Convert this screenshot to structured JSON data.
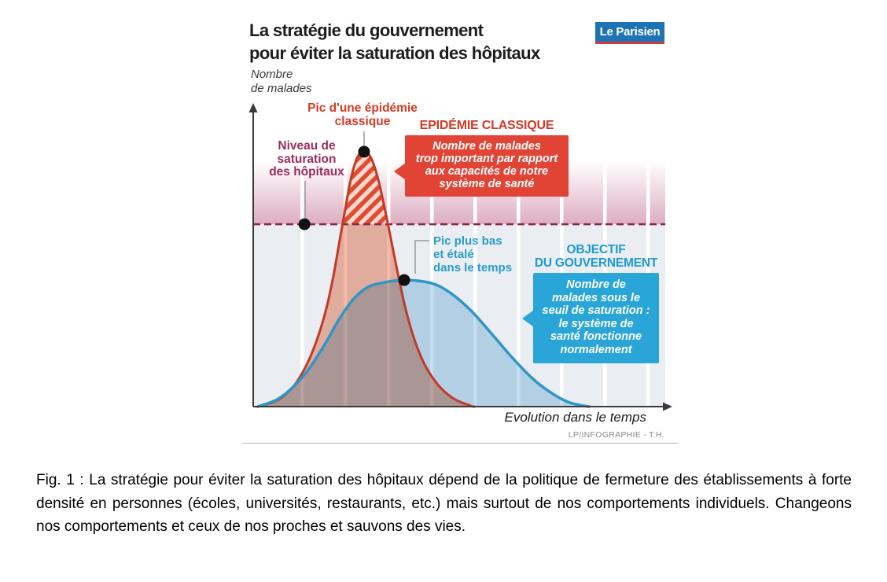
{
  "infographic": {
    "title": {
      "line1": "La stratégie du gouvernement",
      "line2": "pour éviter la saturation des hôpitaux"
    },
    "logo": {
      "text": "Le Parisien",
      "bg_color": "#1e73b4",
      "underline_color": "#cf3a3c"
    },
    "y_axis_label": {
      "line1": "Nombre",
      "line2": "de malades"
    },
    "x_axis_label": "Evolution dans le temps",
    "credit": "LP/INFOGRAPHIE - T.H.",
    "labels": {
      "classic_peak": {
        "line1": "Pic d'une épidémie",
        "line2": "classique",
        "color": "#d53b28"
      },
      "saturation": {
        "line1": "Niveau de",
        "line2": "saturation",
        "line3": "des hôpitaux",
        "color": "#9b2d5e"
      },
      "flat_peak": {
        "line1": "Pic plus bas",
        "line2": "et étalé",
        "line3": "dans le temps",
        "color": "#2a9ccc"
      }
    },
    "red_callout": {
      "heading": "EPIDÉMIE CLASSIQUE",
      "lines": [
        "Nombre de malades",
        "trop important par rapport",
        "aux capacités de notre",
        "système de santé"
      ],
      "bg_color": "#e14334",
      "heading_color": "#d23a27"
    },
    "blue_callout": {
      "heading_line1": "OBJECTIF",
      "heading_line2": "DU GOUVERNEMENT",
      "lines": [
        "Nombre de",
        "malades sous le",
        "seuil de saturation :",
        "le système de",
        "santé fonctionne",
        "normalement"
      ],
      "bg_color": "#2aa5d8",
      "heading_color": "#1b9ad3"
    }
  },
  "chart_data": {
    "type": "area",
    "title": "La stratégie du gouvernement pour éviter la saturation des hôpitaux",
    "xlabel": "Evolution dans le temps",
    "ylabel": "Nombre de malades",
    "x_range": [
      0,
      100
    ],
    "y_range": [
      0,
      100
    ],
    "axes_numeric_labels": false,
    "grid": "vertical pale bands, no tick labels",
    "saturation_line": {
      "label": "Niveau de saturation des hôpitaux",
      "y": 60.4,
      "style": "dashed",
      "color": "#8c2746",
      "marker_x": 12.4
    },
    "series": [
      {
        "name": "Épidémie classique",
        "annotation": "Pic d'une épidémie classique — Nombre de malades trop important par rapport aux capacités de notre système de santé",
        "stroke": "#c23a28",
        "fill": "#f3b9a6",
        "hatched_above_saturation": true,
        "marker": {
          "x": 26.8,
          "y": 84.4
        },
        "points": [
          [
            2.3,
            0.3
          ],
          [
            6.5,
            2.6
          ],
          [
            9.9,
            7.0
          ],
          [
            12.9,
            13.8
          ],
          [
            15.4,
            22.1
          ],
          [
            17.5,
            31.5
          ],
          [
            19.2,
            41.9
          ],
          [
            20.7,
            53.4
          ],
          [
            22.1,
            64.3
          ],
          [
            23.6,
            75.3
          ],
          [
            25.1,
            82.3
          ],
          [
            26.8,
            84.4
          ],
          [
            28.5,
            82.3
          ],
          [
            30.2,
            75.3
          ],
          [
            32.0,
            64.3
          ],
          [
            33.6,
            53.4
          ],
          [
            35.3,
            41.9
          ],
          [
            37.0,
            31.5
          ],
          [
            39.0,
            22.1
          ],
          [
            41.5,
            13.8
          ],
          [
            44.8,
            7.0
          ],
          [
            48.5,
            2.6
          ],
          [
            52.5,
            0.3
          ],
          [
            53.5,
            0
          ]
        ]
      },
      {
        "name": "Objectif du gouvernement",
        "annotation": "Pic plus bas et étalé dans le temps — Nombre de malades sous le seuil de saturation : le système de santé fonctionne normalement",
        "stroke": "#3096c6",
        "fill": "#c3def0",
        "hatched_above_saturation": false,
        "marker": {
          "x": 36.5,
          "y": 41.9
        },
        "points": [
          [
            1.1,
            0
          ],
          [
            5.7,
            2.3
          ],
          [
            9.5,
            6.3
          ],
          [
            13.3,
            12.2
          ],
          [
            17.1,
            20.1
          ],
          [
            20.9,
            29.2
          ],
          [
            24.3,
            35.7
          ],
          [
            27.8,
            39.6
          ],
          [
            31.6,
            41.1
          ],
          [
            36.5,
            41.9
          ],
          [
            43.0,
            40.9
          ],
          [
            47.5,
            37.8
          ],
          [
            52.5,
            32.0
          ],
          [
            57.6,
            24.2
          ],
          [
            62.7,
            16.1
          ],
          [
            67.7,
            9.1
          ],
          [
            71.9,
            4.7
          ],
          [
            76.0,
            1.6
          ],
          [
            79.8,
            0.3
          ],
          [
            81.2,
            0
          ]
        ]
      }
    ]
  },
  "caption": "Fig. 1 : La stratégie pour éviter la saturation des hôpitaux dépend de la politique de fermeture des établissements à forte densité en personnes (écoles, universités, restaurants, etc.) mais surtout de nos comportements individuels. Changeons nos comportements et ceux de nos proches et sauvons des vies."
}
